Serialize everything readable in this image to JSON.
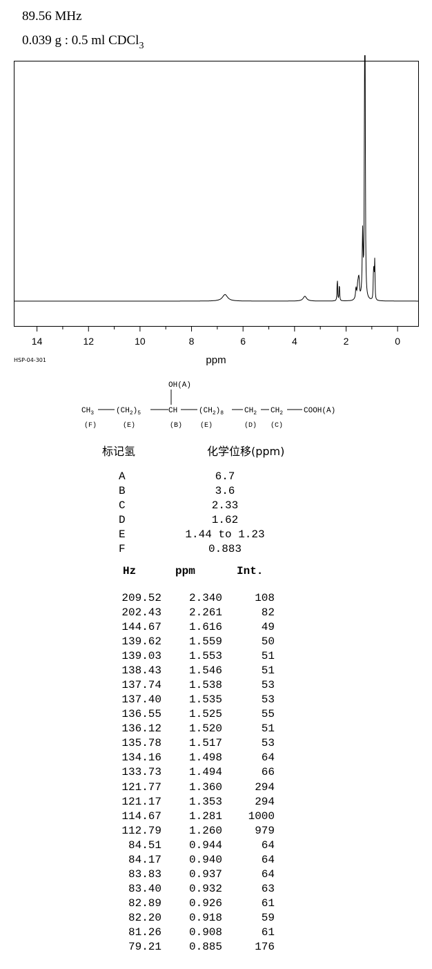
{
  "header": {
    "frequency": "89.56 MHz",
    "sample_main": "0.039 g : 0.5 ml CDCl",
    "sample_sub": "3"
  },
  "catalog_id": "HSP-04-301",
  "chart_data": {
    "type": "line",
    "xlabel": "ppm",
    "xlim": [
      14.9,
      -0.8
    ],
    "x_reversed": true,
    "ticks": [
      "14",
      "12",
      "10",
      "8",
      "6",
      "4",
      "2",
      "0"
    ],
    "tick_values": [
      14,
      12,
      10,
      8,
      6,
      4,
      2,
      0
    ],
    "peaks": [
      {
        "ppm": 6.7,
        "height": 30,
        "width": 0.12
      },
      {
        "ppm": 3.6,
        "height": 22,
        "width": 0.08
      },
      {
        "ppm": 2.34,
        "height": 108,
        "width": 0.012
      },
      {
        "ppm": 2.261,
        "height": 82,
        "width": 0.012
      },
      {
        "ppm": 1.616,
        "height": 49,
        "width": 0.02
      },
      {
        "ppm": 1.55,
        "height": 52,
        "width": 0.025
      },
      {
        "ppm": 1.52,
        "height": 53,
        "width": 0.02
      },
      {
        "ppm": 1.496,
        "height": 65,
        "width": 0.018
      },
      {
        "ppm": 1.357,
        "height": 294,
        "width": 0.02
      },
      {
        "ppm": 1.281,
        "height": 1000,
        "width": 0.012
      },
      {
        "ppm": 1.26,
        "height": 979,
        "width": 0.012
      },
      {
        "ppm": 0.94,
        "height": 64,
        "width": 0.012
      },
      {
        "ppm": 0.93,
        "height": 63,
        "width": 0.012
      },
      {
        "ppm": 0.918,
        "height": 59,
        "width": 0.012
      },
      {
        "ppm": 0.908,
        "height": 61,
        "width": 0.012
      },
      {
        "ppm": 0.885,
        "height": 176,
        "width": 0.01
      }
    ],
    "ymax": 1000
  },
  "structure": {
    "oh_label": "OH(A)",
    "ch3": "CH",
    "ch3_sub": "3",
    "ch2a": "(CH",
    "ch2a_sub": "2",
    "ch2a_close": ")",
    "ch2a_n": "5",
    "ch": "CH",
    "ch2b": "(CH",
    "ch2b_sub": "2",
    "ch2b_close": ")",
    "ch2b_n": "8",
    "ch2c": "CH",
    "ch2c_sub": "2",
    "ch2d": "CH",
    "ch2d_sub": "2",
    "cooh": "COOH(A)",
    "labels": [
      "(F)",
      "(E)",
      "(B)",
      "(E)",
      "(D)",
      "(C)"
    ]
  },
  "assignment": {
    "label_header": "标记氢",
    "shift_header": "化学位移(ppm)",
    "rows": [
      {
        "label": "A",
        "shift": "6.7"
      },
      {
        "label": "B",
        "shift": "3.6"
      },
      {
        "label": "C",
        "shift": "2.33"
      },
      {
        "label": "D",
        "shift": "1.62"
      },
      {
        "label": "E",
        "shift": "1.44 to 1.23"
      },
      {
        "label": "F",
        "shift": "0.883"
      }
    ]
  },
  "peak_table": {
    "headers": {
      "hz": "Hz",
      "ppm": "ppm",
      "int": "Int."
    },
    "rows": [
      {
        "hz": "209.52",
        "ppm": "2.340",
        "int": "108"
      },
      {
        "hz": "202.43",
        "ppm": "2.261",
        "int": "82"
      },
      {
        "hz": "144.67",
        "ppm": "1.616",
        "int": "49"
      },
      {
        "hz": "139.62",
        "ppm": "1.559",
        "int": "50"
      },
      {
        "hz": "139.03",
        "ppm": "1.553",
        "int": "51"
      },
      {
        "hz": "138.43",
        "ppm": "1.546",
        "int": "51"
      },
      {
        "hz": "137.74",
        "ppm": "1.538",
        "int": "53"
      },
      {
        "hz": "137.40",
        "ppm": "1.535",
        "int": "53"
      },
      {
        "hz": "136.55",
        "ppm": "1.525",
        "int": "55"
      },
      {
        "hz": "136.12",
        "ppm": "1.520",
        "int": "51"
      },
      {
        "hz": "135.78",
        "ppm": "1.517",
        "int": "53"
      },
      {
        "hz": "134.16",
        "ppm": "1.498",
        "int": "64"
      },
      {
        "hz": "133.73",
        "ppm": "1.494",
        "int": "66"
      },
      {
        "hz": "121.77",
        "ppm": "1.360",
        "int": "294"
      },
      {
        "hz": "121.17",
        "ppm": "1.353",
        "int": "294"
      },
      {
        "hz": "114.67",
        "ppm": "1.281",
        "int": "1000"
      },
      {
        "hz": "112.79",
        "ppm": "1.260",
        "int": "979"
      },
      {
        "hz": "84.51",
        "ppm": "0.944",
        "int": "64"
      },
      {
        "hz": "84.17",
        "ppm": "0.940",
        "int": "64"
      },
      {
        "hz": "83.83",
        "ppm": "0.937",
        "int": "64"
      },
      {
        "hz": "83.40",
        "ppm": "0.932",
        "int": "63"
      },
      {
        "hz": "82.89",
        "ppm": "0.926",
        "int": "61"
      },
      {
        "hz": "82.20",
        "ppm": "0.918",
        "int": "59"
      },
      {
        "hz": "81.26",
        "ppm": "0.908",
        "int": "61"
      },
      {
        "hz": "79.21",
        "ppm": "0.885",
        "int": "176"
      }
    ]
  }
}
